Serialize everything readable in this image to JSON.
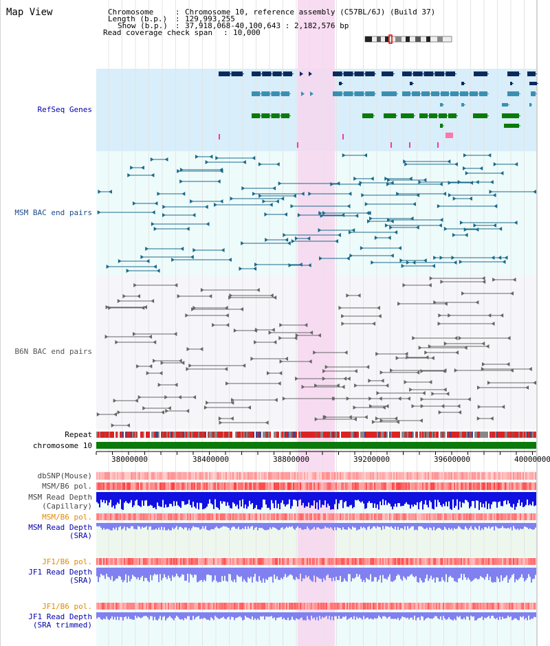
{
  "view_title": "Map View",
  "header": {
    "chromosome_label": "Chromosome",
    "chromosome_value": "Chromosome 10, reference assembly (C57BL/6J) (Build 37)",
    "length_label": "Length (b.p.)",
    "length_value": "129,993,255",
    "show_label": "Show (b.p.)",
    "show_value": "37,918,068-40,100,643 : 2,182,576 bp",
    "coverage_label": "Read coverage check span",
    "coverage_value": "10,000"
  },
  "tracks": {
    "refseq": "RefSeq Genes",
    "msm_bac": "MSM BAC end pairs",
    "b6n_bac": "B6N BAC end pairs",
    "repeat": "Repeat",
    "chromosome": "chromosome 10",
    "dbsnp": "dbSNP(Mouse)",
    "msm_b6_pol_1": "MSM/B6 pol.",
    "msm_depth_cap_1": "MSM Read Depth",
    "msm_depth_cap_2": "(Capillary)",
    "msm_b6_pol_2": "MSM/B6 pol.",
    "msm_depth_sra_1": "MSM Read Depth",
    "msm_depth_sra_2": "(SRA)",
    "jf1_pol_1": "JF1/B6 pol.",
    "jf1_depth_1": "JF1 Read Depth",
    "jf1_depth_2": "(SRA)",
    "jf1_pol_2": "JF1/B6 pol.",
    "jf1_trim_1": "JF1 Read Depth",
    "jf1_trim_2": "(SRA trimmed)"
  },
  "axis_ticks": [
    "38000000",
    "38400000",
    "38800000",
    "39200000",
    "39600000",
    "40000000"
  ],
  "colors": {
    "refseq_bg": "#d8eefa",
    "msm_bg": "#eefbfb",
    "b6n_bg": "#f6f6fa",
    "highlight": "#f7d6ef",
    "gene_dark": "#0a2a5e",
    "gene_mid": "#3a8fb0",
    "gene_green": "#0a7a0a",
    "msm_line": "#1a6a8a",
    "b6n_line": "#666666",
    "chrom_bar": "#0a7a0a",
    "label_blue": "#0000aa",
    "label_orange": "#e08a00",
    "depth_dark": "#1010e0",
    "depth_light": "#8080f0"
  }
}
